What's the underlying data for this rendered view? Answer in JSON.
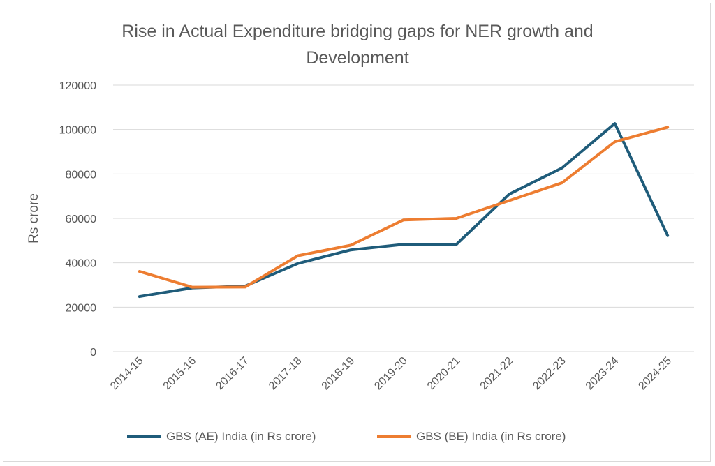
{
  "chart_data": {
    "type": "line",
    "title_line1": "Rise in Actual Expenditure bridging gaps for  NER growth and",
    "title_line2": "Development",
    "xlabel": "",
    "ylabel": "Rs crore",
    "ylim": [
      0,
      120000
    ],
    "yticks": [
      "0",
      "20000",
      "40000",
      "60000",
      "80000",
      "100000",
      "120000"
    ],
    "grid": true,
    "legend_position": "bottom",
    "categories": [
      "2014-15",
      "2015-16",
      "2016-17",
      "2017-18",
      "2018-19",
      "2019-20",
      "2020-21",
      "2021-22",
      "2022-23",
      "2023-24",
      "2024-25"
    ],
    "series": [
      {
        "name": "GBS (AE)  India (in Rs crore)",
        "color": "#1f5c7a",
        "values": [
          24800,
          28700,
          29500,
          39700,
          45800,
          48300,
          48300,
          70900,
          82700,
          102700,
          52200
        ]
      },
      {
        "name": "GBS (BE)  India (in Rs crore)",
        "color": "#ed7d31",
        "values": [
          36100,
          29000,
          29100,
          43200,
          47900,
          59300,
          60000,
          68000,
          76000,
          94500,
          101000
        ]
      }
    ]
  }
}
